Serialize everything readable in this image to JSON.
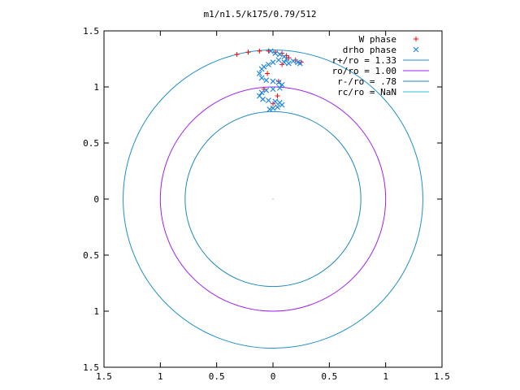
{
  "chart_data": {
    "type": "scatter",
    "title": "m1/n1.5/k175/0.79/512",
    "xlabel": "",
    "ylabel": "",
    "xlim": [
      -1.5,
      1.5
    ],
    "ylim": [
      -1.5,
      1.5
    ],
    "x_ticks": [
      {
        "value": -1.5,
        "label": "1.5"
      },
      {
        "value": -1.0,
        "label": "1"
      },
      {
        "value": -0.5,
        "label": "0.5"
      },
      {
        "value": 0.0,
        "label": "0"
      },
      {
        "value": 0.5,
        "label": "0.5"
      },
      {
        "value": 1.0,
        "label": "1"
      },
      {
        "value": 1.5,
        "label": "1.5"
      }
    ],
    "y_ticks": [
      {
        "value": 1.5,
        "label": "1.5"
      },
      {
        "value": 1.0,
        "label": "1"
      },
      {
        "value": 0.5,
        "label": "0.5"
      },
      {
        "value": 0.0,
        "label": "0"
      },
      {
        "value": -0.5,
        "label": "0.5"
      },
      {
        "value": -1.0,
        "label": "1"
      },
      {
        "value": -1.5,
        "label": "1.5"
      }
    ],
    "grid": false,
    "legend_position": "top-right",
    "series": [
      {
        "name": "W phase",
        "kind": "points",
        "marker": "plus",
        "color": "#ff0000",
        "points": [
          [
            -0.32,
            1.29
          ],
          [
            -0.22,
            1.31
          ],
          [
            -0.12,
            1.32
          ],
          [
            -0.04,
            1.32
          ],
          [
            0.02,
            1.31
          ],
          [
            0.08,
            1.3
          ],
          [
            0.12,
            1.28
          ],
          [
            0.14,
            1.26
          ],
          [
            0.2,
            1.24
          ],
          [
            0.25,
            1.22
          ],
          [
            0.08,
            1.2
          ],
          [
            -0.05,
            1.12
          ],
          [
            0.05,
            1.05
          ],
          [
            -0.08,
            0.98
          ],
          [
            0.04,
            0.92
          ],
          [
            0.0,
            0.85
          ]
        ]
      },
      {
        "name": "drho phase",
        "kind": "points",
        "marker": "cross",
        "color": "#2288dd",
        "points": [
          [
            -0.02,
            1.32
          ],
          [
            0.02,
            1.3
          ],
          [
            0.06,
            1.29
          ],
          [
            0.1,
            1.27
          ],
          [
            0.12,
            1.25
          ],
          [
            0.05,
            1.24
          ],
          [
            0.0,
            1.22
          ],
          [
            -0.04,
            1.2
          ],
          [
            -0.08,
            1.18
          ],
          [
            -0.1,
            1.16
          ],
          [
            -0.12,
            1.12
          ],
          [
            -0.1,
            1.08
          ],
          [
            -0.06,
            1.06
          ],
          [
            0.0,
            1.05
          ],
          [
            0.05,
            1.04
          ],
          [
            0.08,
            1.02
          ],
          [
            0.06,
            0.99
          ],
          [
            0.0,
            0.98
          ],
          [
            -0.06,
            0.97
          ],
          [
            -0.1,
            0.95
          ],
          [
            -0.12,
            0.92
          ],
          [
            -0.09,
            0.89
          ],
          [
            -0.04,
            0.88
          ],
          [
            0.02,
            0.87
          ],
          [
            0.06,
            0.86
          ],
          [
            0.08,
            0.84
          ],
          [
            0.04,
            0.82
          ],
          [
            0.0,
            0.81
          ],
          [
            -0.03,
            0.8
          ],
          [
            0.18,
            1.23
          ],
          [
            0.22,
            1.22
          ],
          [
            0.24,
            1.21
          ],
          [
            0.14,
            1.21
          ],
          [
            0.1,
            1.22
          ]
        ]
      },
      {
        "name": "r+/ro = 1.33",
        "kind": "circle",
        "radius": 1.33,
        "color": "#1e90c8"
      },
      {
        "name": "ro/ro = 1.00",
        "kind": "circle",
        "radius": 1.0,
        "color": "#a020f0"
      },
      {
        "name": "r-/ro = .78",
        "kind": "circle",
        "radius": 0.78,
        "color": "#1e88c0"
      },
      {
        "name": "rc/ro = NaN",
        "kind": "circle",
        "radius": null,
        "color": "#30c0d8"
      }
    ]
  }
}
